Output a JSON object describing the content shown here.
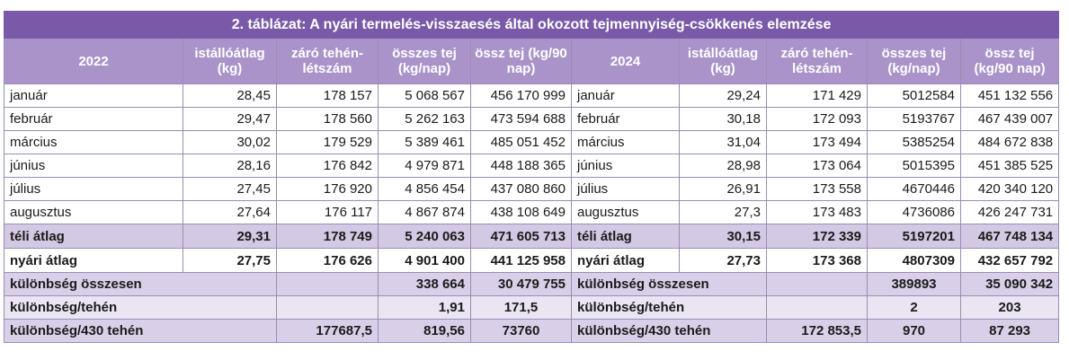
{
  "title": "2. táblázat: A nyári termelés-visszaesés által okozott tejmennyiség-csökkenés elemzése",
  "headers": {
    "left_year": "2022",
    "right_year": "2024",
    "col1": "istállóátlag (kg)",
    "col2": "záró tehén-létszám",
    "col3": "összes tej (kg/nap)",
    "col4": "össz tej (kg/90 nap)"
  },
  "rows": [
    {
      "month_l": "január",
      "a": "28,45",
      "b": "178 157",
      "c": "5 068 567",
      "d": "456 170 999",
      "month_r": "január",
      "e": "29,24",
      "f": "171 429",
      "g": "5012584",
      "h": "451 132 556"
    },
    {
      "month_l": "február",
      "a": "29,47",
      "b": "178 560",
      "c": "5 262 163",
      "d": "473 594 688",
      "month_r": "február",
      "e": "30,18",
      "f": "172 093",
      "g": "5193767",
      "h": "467 439 007"
    },
    {
      "month_l": "március",
      "a": "30,02",
      "b": "179 529",
      "c": "5 389 461",
      "d": "485 051 452",
      "month_r": "március",
      "e": "31,04",
      "f": "173 494",
      "g": "5385254",
      "h": "484 672 838"
    },
    {
      "month_l": "június",
      "a": "28,16",
      "b": "176 842",
      "c": "4 979 871",
      "d": "448 188 365",
      "month_r": "június",
      "e": "28,98",
      "f": "173 064",
      "g": "5015395",
      "h": "451 385 525"
    },
    {
      "month_l": "július",
      "a": "27,45",
      "b": "176 920",
      "c": "4 856 454",
      "d": "437 080 860",
      "month_r": "július",
      "e": "26,91",
      "f": "173 558",
      "g": "4670446",
      "h": "420 340 120"
    },
    {
      "month_l": "augusztus",
      "a": "27,64",
      "b": "176 117",
      "c": "4 867 874",
      "d": "438 108 649",
      "month_r": "augusztus",
      "e": "27,3",
      "f": "173 483",
      "g": "4736086",
      "h": "426 247 731"
    }
  ],
  "winter_avg": {
    "label": "téli átlag",
    "a": "29,31",
    "b": "178 749",
    "c": "5 240 063",
    "d": "471 605 713",
    "e": "30,15",
    "f": "172 339",
    "g": "5197201",
    "h": "467 748 134"
  },
  "summer_avg": {
    "label": "nyári átlag",
    "a": "27,75",
    "b": "176 626",
    "c": "4 901 400",
    "d": "441 125 958",
    "e": "27,73",
    "f": "173 368",
    "g": "4807309",
    "h": "432 657 792"
  },
  "diff_total": {
    "label": "különbség összesen",
    "c": "338 664",
    "d": "30 479 755",
    "g": "389893",
    "h": "35 090 342"
  },
  "diff_cow": {
    "label": "különbség/tehén",
    "c": "1,91",
    "d": "171,5",
    "g": "2",
    "h": "203"
  },
  "diff_430": {
    "label": "különbség/430 tehén",
    "b": "177687,5",
    "c": "819,56",
    "d": "73760",
    "f": "172 853,5",
    "g": "970",
    "h": "87 293"
  }
}
